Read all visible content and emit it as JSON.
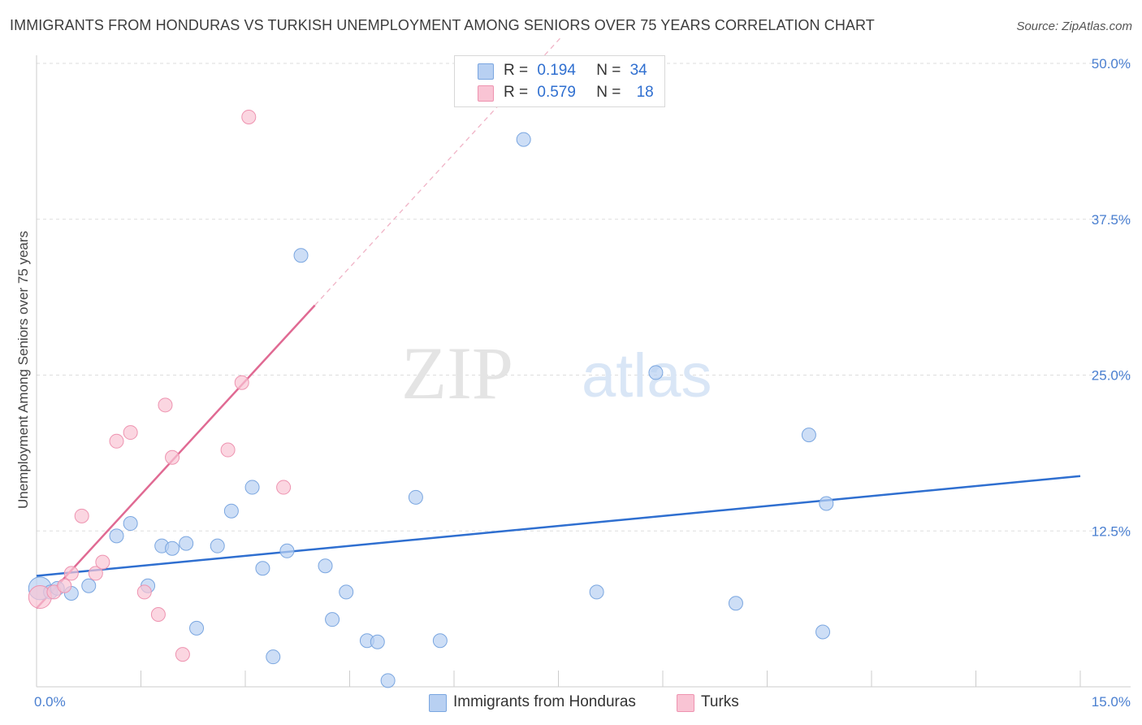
{
  "title": "IMMIGRANTS FROM HONDURAS VS TURKISH UNEMPLOYMENT AMONG SENIORS OVER 75 YEARS CORRELATION CHART",
  "source": "Source: ZipAtlas.com",
  "watermark": {
    "zip": "ZIP",
    "atlas": "atlas"
  },
  "legend": {
    "series1": {
      "r_label": "R =",
      "r_value": "0.194",
      "n_label": "N =",
      "n_value": "34"
    },
    "series2": {
      "r_label": "R =",
      "r_value": "0.579",
      "n_label": "N =",
      "n_value": "18"
    }
  },
  "colors": {
    "blue_fill": "#b8d0f2",
    "blue_stroke": "#7aa6e0",
    "blue_line": "#2f6fd0",
    "pink_fill": "#f9c4d4",
    "pink_stroke": "#ee93b0",
    "pink_line": "#e06a93",
    "grid": "#dddddd",
    "tick_text": "#4a7fd0"
  },
  "chart_data": {
    "type": "scatter",
    "xlabel": "",
    "ylabel": "Unemployment Among Seniors over 75 years",
    "xlim": [
      0,
      15
    ],
    "ylim": [
      0,
      50
    ],
    "x_tick_labels": [
      "0.0%",
      "15.0%"
    ],
    "y_ticks": [
      12.5,
      25.0,
      37.5,
      50.0
    ],
    "y_tick_labels": [
      "12.5%",
      "25.0%",
      "37.5%",
      "50.0%"
    ],
    "grid": true,
    "legend_position": "bottom-center",
    "series": [
      {
        "name": "Immigrants from Honduras",
        "color": "#b8d0f2",
        "points": [
          {
            "x": 0.05,
            "y": 7.9,
            "size": "large"
          },
          {
            "x": 0.2,
            "y": 7.6
          },
          {
            "x": 0.3,
            "y": 7.9
          },
          {
            "x": 0.5,
            "y": 7.5
          },
          {
            "x": 0.75,
            "y": 8.1
          },
          {
            "x": 1.15,
            "y": 12.1
          },
          {
            "x": 1.35,
            "y": 13.1
          },
          {
            "x": 1.6,
            "y": 8.1
          },
          {
            "x": 1.8,
            "y": 11.3
          },
          {
            "x": 1.95,
            "y": 11.1
          },
          {
            "x": 2.15,
            "y": 11.5
          },
          {
            "x": 2.3,
            "y": 4.7
          },
          {
            "x": 2.6,
            "y": 11.3
          },
          {
            "x": 2.8,
            "y": 14.1
          },
          {
            "x": 3.1,
            "y": 16.0
          },
          {
            "x": 3.25,
            "y": 9.5
          },
          {
            "x": 3.4,
            "y": 2.4
          },
          {
            "x": 3.6,
            "y": 10.9
          },
          {
            "x": 3.8,
            "y": 34.6
          },
          {
            "x": 4.15,
            "y": 9.7
          },
          {
            "x": 4.25,
            "y": 5.4
          },
          {
            "x": 4.45,
            "y": 7.6
          },
          {
            "x": 4.75,
            "y": 3.7
          },
          {
            "x": 4.9,
            "y": 3.6
          },
          {
            "x": 5.05,
            "y": 0.5
          },
          {
            "x": 5.45,
            "y": 15.2
          },
          {
            "x": 5.8,
            "y": 3.7
          },
          {
            "x": 7.0,
            "y": 43.9
          },
          {
            "x": 8.05,
            "y": 7.6
          },
          {
            "x": 8.9,
            "y": 25.2
          },
          {
            "x": 10.05,
            "y": 6.7
          },
          {
            "x": 11.1,
            "y": 20.2
          },
          {
            "x": 11.3,
            "y": 4.4
          },
          {
            "x": 11.35,
            "y": 14.7
          }
        ],
        "trend": {
          "x": [
            0,
            15
          ],
          "y": [
            8.9,
            16.9
          ]
        }
      },
      {
        "name": "Turks",
        "color": "#f9c4d4",
        "points": [
          {
            "x": 0.05,
            "y": 7.2,
            "size": "large"
          },
          {
            "x": 0.25,
            "y": 7.6
          },
          {
            "x": 0.4,
            "y": 8.1
          },
          {
            "x": 0.5,
            "y": 9.1
          },
          {
            "x": 0.65,
            "y": 13.7
          },
          {
            "x": 0.85,
            "y": 9.1
          },
          {
            "x": 0.95,
            "y": 10.0
          },
          {
            "x": 1.15,
            "y": 19.7
          },
          {
            "x": 1.35,
            "y": 20.4
          },
          {
            "x": 1.55,
            "y": 7.6
          },
          {
            "x": 1.75,
            "y": 5.8
          },
          {
            "x": 1.85,
            "y": 22.6
          },
          {
            "x": 1.95,
            "y": 18.4
          },
          {
            "x": 2.1,
            "y": 2.6
          },
          {
            "x": 2.75,
            "y": 19.0
          },
          {
            "x": 2.95,
            "y": 24.4
          },
          {
            "x": 3.05,
            "y": 45.7
          },
          {
            "x": 3.55,
            "y": 16.0
          }
        ],
        "trend": {
          "x": [
            0,
            4.0
          ],
          "y": [
            6.3,
            30.6
          ]
        },
        "trend_extension": {
          "x": [
            4.0,
            8.0
          ],
          "y": [
            30.6,
            54.9
          ]
        }
      }
    ]
  }
}
